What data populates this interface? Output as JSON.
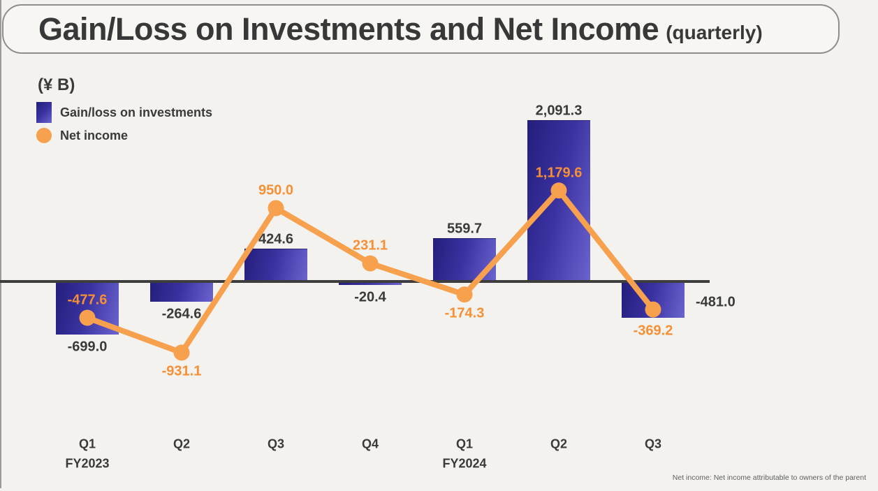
{
  "header": {
    "title": "Gain/Loss on Investments and Net Income",
    "suffix": "(quarterly)"
  },
  "units_label": "(¥ B)",
  "legend": {
    "items": [
      {
        "label": "Gain/loss on investments",
        "swatch": "gradient-bar-square"
      },
      {
        "label": "Net income",
        "swatch": "orange-circle"
      }
    ]
  },
  "footnote": "Net income: Net income attributable to owners of the parent",
  "chart_data": {
    "type": "bar",
    "subtype": "bar-and-line-combo",
    "title": "Gain/Loss on Investments and Net Income (quarterly)",
    "ylabel": "(¥ B)",
    "xlabel": "",
    "axis": {
      "zero_line": true,
      "gridlines": false,
      "y_axis_hidden": true,
      "approx_ylim": [
        -1000,
        2200
      ]
    },
    "legend_position": "top-left",
    "categories": [
      {
        "quarter": "Q1",
        "fiscal_year": "FY2023"
      },
      {
        "quarter": "Q2"
      },
      {
        "quarter": "Q3"
      },
      {
        "quarter": "Q4"
      },
      {
        "quarter": "Q1",
        "fiscal_year": "FY2024"
      },
      {
        "quarter": "Q2"
      },
      {
        "quarter": "Q3"
      }
    ],
    "series": [
      {
        "name": "Gain/loss on investments",
        "type": "bar",
        "values": [
          -699.0,
          -264.6,
          424.6,
          -20.4,
          559.7,
          2091.3,
          -481.0
        ],
        "label_placement": [
          "below",
          "below",
          "above",
          "below",
          "above",
          "above",
          "right"
        ]
      },
      {
        "name": "Net income",
        "type": "line",
        "values": [
          -477.6,
          -931.1,
          950.0,
          231.1,
          -174.3,
          1179.6,
          -369.2
        ],
        "label_placement": [
          "above",
          "below",
          "above",
          "above",
          "below",
          "above",
          "below-bar"
        ]
      }
    ],
    "colors": {
      "bar_gradient_start": "#241e7c",
      "bar_gradient_end": "#6b63ce",
      "line": "#f7a04e",
      "line_label": "#f78f35",
      "bar_label": "#3a3a3a",
      "axis_line": "#3d3d3d",
      "background": "#f3f2ef"
    }
  }
}
